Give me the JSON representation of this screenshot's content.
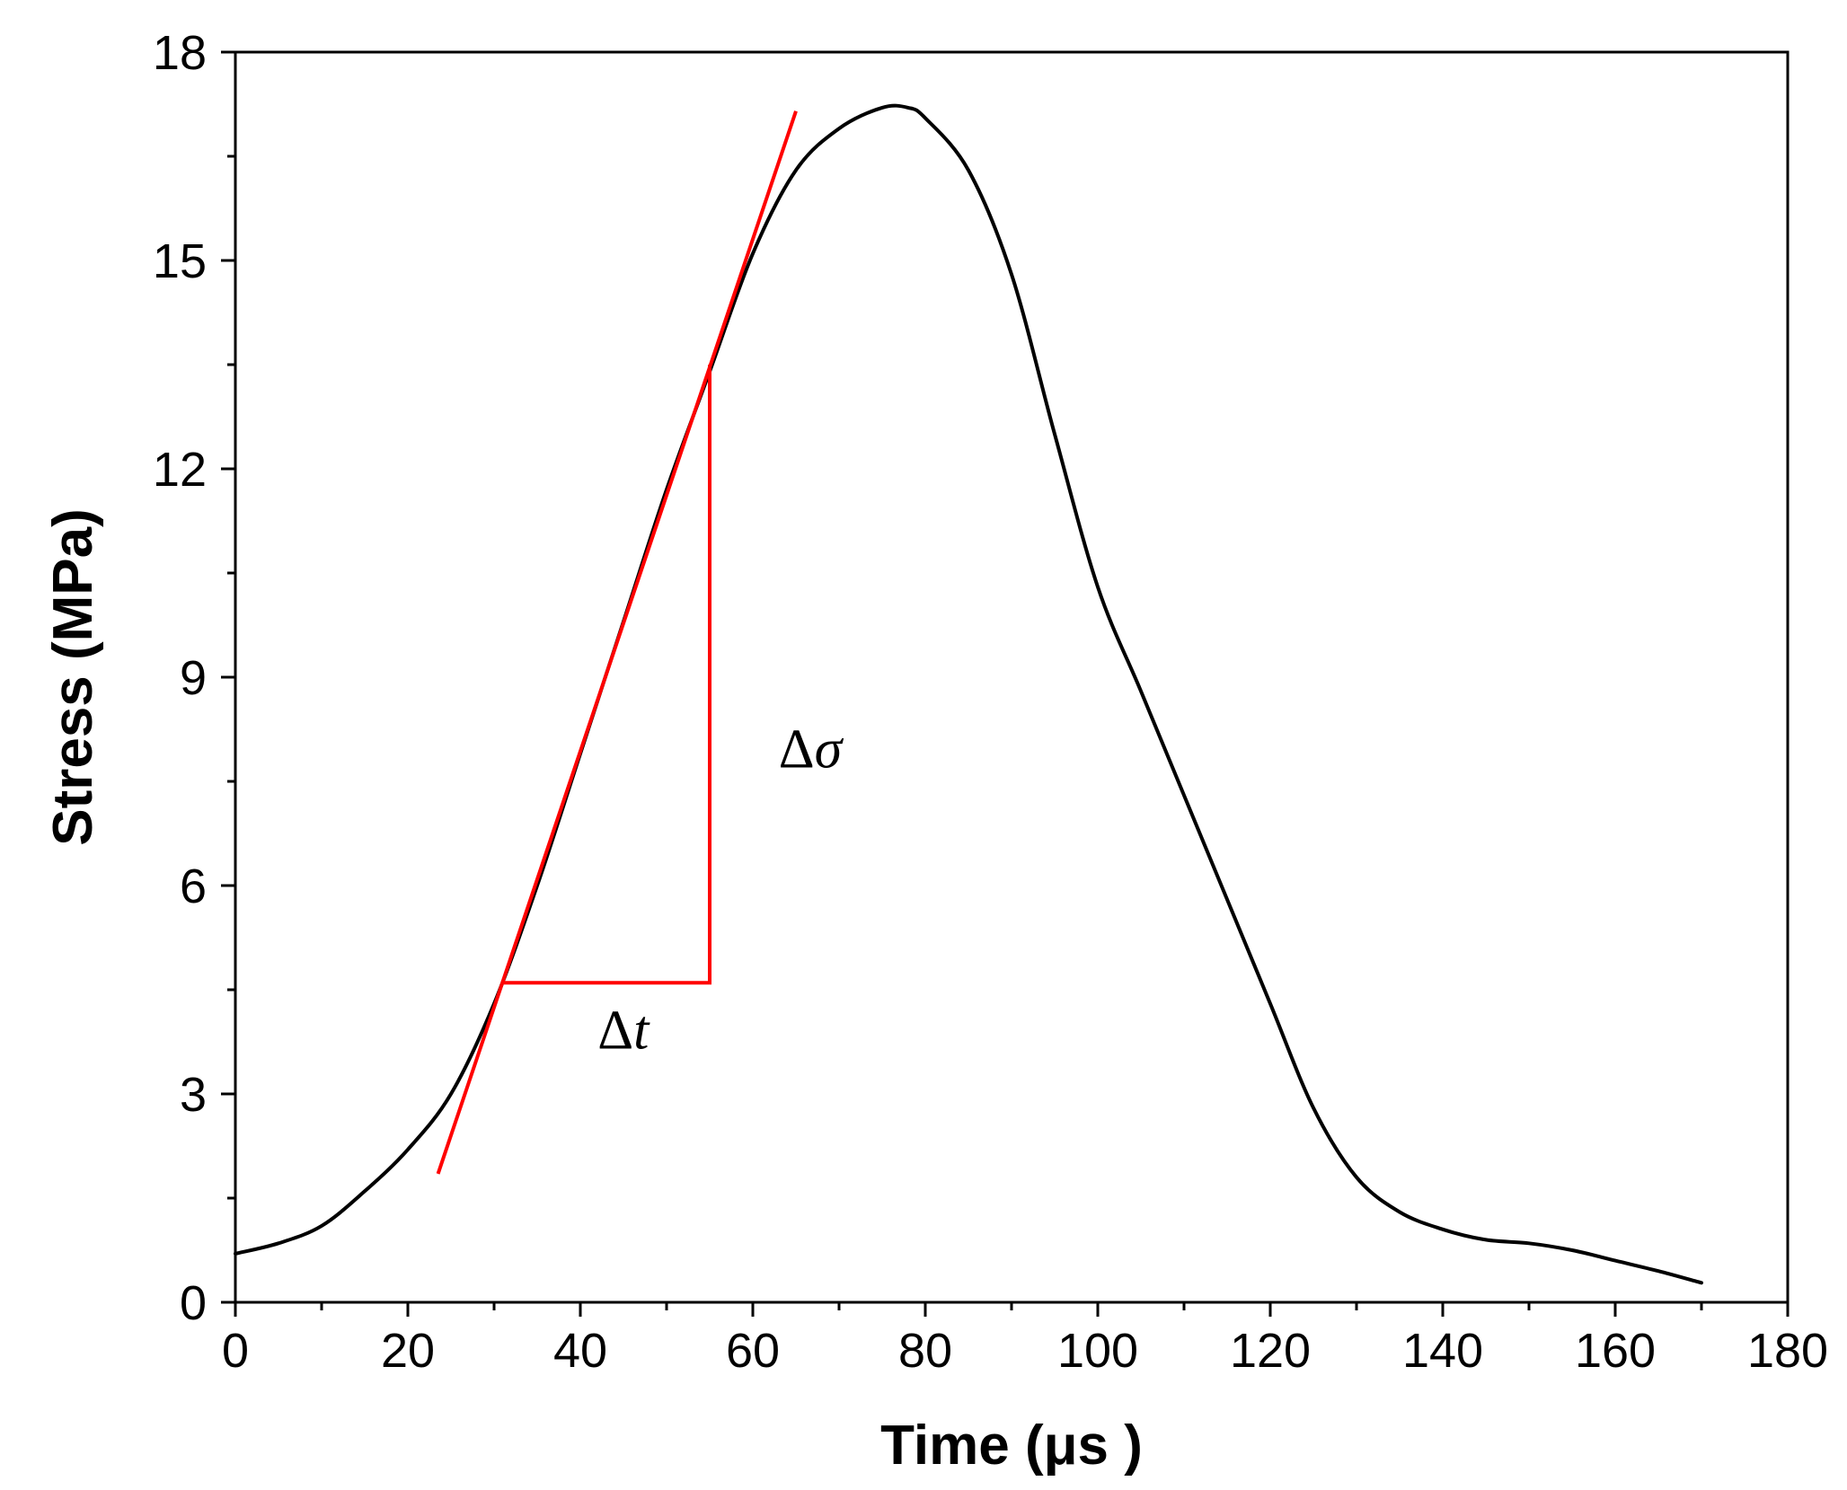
{
  "chart_data": {
    "type": "line",
    "title": "",
    "xlabel": "Time (μs )",
    "ylabel": "Stress (MPa)",
    "xlim": [
      0,
      180
    ],
    "ylim": [
      0,
      18
    ],
    "xticks": [
      0,
      20,
      40,
      60,
      80,
      100,
      120,
      140,
      160,
      180
    ],
    "yticks": [
      0,
      3,
      6,
      9,
      12,
      15,
      18
    ],
    "xtick_labels": [
      "0",
      "20",
      "40",
      "60",
      "80",
      "100",
      "120",
      "140",
      "160",
      "180"
    ],
    "ytick_labels": [
      "0",
      "3",
      "6",
      "9",
      "12",
      "15",
      "18"
    ],
    "grid": false,
    "series": [
      {
        "name": "stress",
        "color": "#000000",
        "x": [
          0,
          5,
          10,
          15,
          20,
          25,
          30,
          35,
          40,
          45,
          50,
          55,
          60,
          65,
          70,
          75,
          78,
          80,
          85,
          90,
          95,
          100,
          105,
          110,
          115,
          120,
          125,
          130,
          135,
          140,
          145,
          150,
          155,
          160,
          165,
          170
        ],
        "y": [
          0.7,
          0.85,
          1.1,
          1.6,
          2.2,
          3.0,
          4.3,
          6.0,
          7.9,
          9.8,
          11.7,
          13.4,
          15.1,
          16.3,
          16.9,
          17.2,
          17.2,
          17.05,
          16.3,
          14.8,
          12.5,
          10.3,
          8.8,
          7.3,
          5.8,
          4.3,
          2.8,
          1.8,
          1.3,
          1.05,
          0.9,
          0.85,
          0.75,
          0.6,
          0.45,
          0.28
        ]
      }
    ],
    "tangent_line": {
      "color": "#ff0000",
      "x": [
        23.5,
        65
      ],
      "y": [
        1.85,
        17.15
      ]
    },
    "slope_triangle": {
      "color": "#ff0000",
      "points": [
        [
          31,
          4.6
        ],
        [
          55,
          4.6
        ],
        [
          55,
          13.5
        ]
      ]
    },
    "annotations": [
      {
        "symbol": "Δ",
        "var": "σ",
        "x": 63,
        "y": 7.7
      },
      {
        "symbol": "Δ",
        "var": "t",
        "x": 42,
        "y": 3.65
      }
    ]
  }
}
